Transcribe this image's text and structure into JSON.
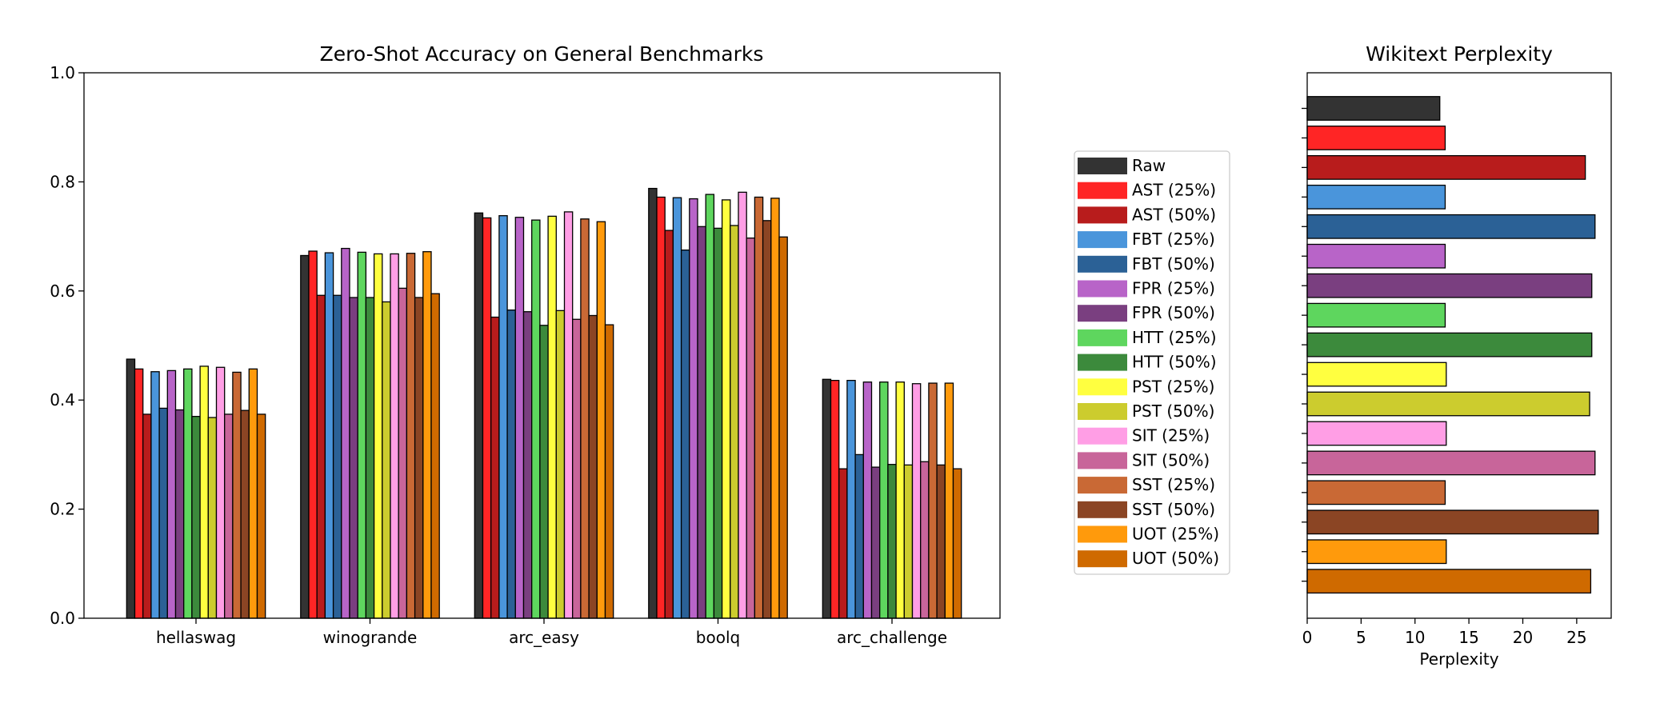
{
  "chart_data": [
    {
      "type": "bar",
      "title": "Zero-Shot Accuracy on General Benchmarks",
      "xlabel": "",
      "ylabel": "",
      "ylim": [
        0,
        1.0
      ],
      "yticks": [
        "0.0",
        "0.2",
        "0.4",
        "0.6",
        "0.8",
        "1.0"
      ],
      "grid": false,
      "legend_placement": "right",
      "categories": [
        "hellaswag",
        "winogrande",
        "arc_easy",
        "boolq",
        "arc_challenge"
      ],
      "series": [
        {
          "name": "Raw",
          "color": "#333333",
          "values": [
            0.475,
            0.665,
            0.743,
            0.788,
            0.438
          ]
        },
        {
          "name": "AST (25%)",
          "color": "#ff2525",
          "values": [
            0.457,
            0.673,
            0.734,
            0.772,
            0.436
          ]
        },
        {
          "name": "AST (50%)",
          "color": "#b81c1c",
          "values": [
            0.374,
            0.592,
            0.552,
            0.711,
            0.274
          ]
        },
        {
          "name": "FBT (25%)",
          "color": "#4a95db",
          "values": [
            0.452,
            0.67,
            0.738,
            0.771,
            0.436
          ]
        },
        {
          "name": "FBT (50%)",
          "color": "#2b6196",
          "values": [
            0.385,
            0.592,
            0.565,
            0.675,
            0.3
          ]
        },
        {
          "name": "FPR (25%)",
          "color": "#b864c8",
          "values": [
            0.454,
            0.678,
            0.735,
            0.769,
            0.433
          ]
        },
        {
          "name": "FPR (50%)",
          "color": "#7a3f80",
          "values": [
            0.382,
            0.588,
            0.562,
            0.718,
            0.277
          ]
        },
        {
          "name": "HTT (25%)",
          "color": "#5ed65e",
          "values": [
            0.457,
            0.671,
            0.73,
            0.777,
            0.433
          ]
        },
        {
          "name": "HTT (50%)",
          "color": "#3c8a3c",
          "values": [
            0.37,
            0.588,
            0.537,
            0.715,
            0.282
          ]
        },
        {
          "name": "PST (25%)",
          "color": "#ffff40",
          "values": [
            0.462,
            0.668,
            0.737,
            0.767,
            0.433
          ]
        },
        {
          "name": "PST (50%)",
          "color": "#cccc2e",
          "values": [
            0.368,
            0.58,
            0.564,
            0.72,
            0.281
          ]
        },
        {
          "name": "SIT (25%)",
          "color": "#ff9ee5",
          "values": [
            0.46,
            0.668,
            0.745,
            0.781,
            0.43
          ]
        },
        {
          "name": "SIT (50%)",
          "color": "#c8659a",
          "values": [
            0.374,
            0.605,
            0.548,
            0.697,
            0.287
          ]
        },
        {
          "name": "SST (25%)",
          "color": "#c96935",
          "values": [
            0.451,
            0.669,
            0.732,
            0.772,
            0.431
          ]
        },
        {
          "name": "SST (50%)",
          "color": "#8b4524",
          "values": [
            0.381,
            0.588,
            0.555,
            0.729,
            0.281
          ]
        },
        {
          "name": "UOT (25%)",
          "color": "#ff9a0c",
          "values": [
            0.457,
            0.672,
            0.727,
            0.77,
            0.431
          ]
        },
        {
          "name": "UOT (50%)",
          "color": "#cf6a00",
          "values": [
            0.374,
            0.595,
            0.538,
            0.699,
            0.274
          ]
        }
      ]
    },
    {
      "type": "bar",
      "orientation": "horizontal",
      "title": "Wikitext Perplexity",
      "xlabel": "Perplexity",
      "ylabel": "",
      "xlim": [
        0,
        28.2
      ],
      "xticks": [
        "0",
        "5",
        "10",
        "15",
        "20",
        "25"
      ],
      "grid": false,
      "categories": [
        "Raw",
        "AST (25%)",
        "AST (50%)",
        "FBT (25%)",
        "FBT (50%)",
        "FPR (25%)",
        "FPR (50%)",
        "HTT (25%)",
        "HTT (50%)",
        "PST (25%)",
        "PST (50%)",
        "SIT (25%)",
        "SIT (50%)",
        "SST (25%)",
        "SST (50%)",
        "UOT (25%)",
        "UOT (50%)"
      ],
      "values": [
        12.3,
        12.8,
        25.8,
        12.8,
        26.7,
        12.8,
        26.4,
        12.8,
        26.4,
        12.9,
        26.2,
        12.9,
        26.7,
        12.8,
        27.0,
        12.9,
        26.3
      ]
    }
  ]
}
